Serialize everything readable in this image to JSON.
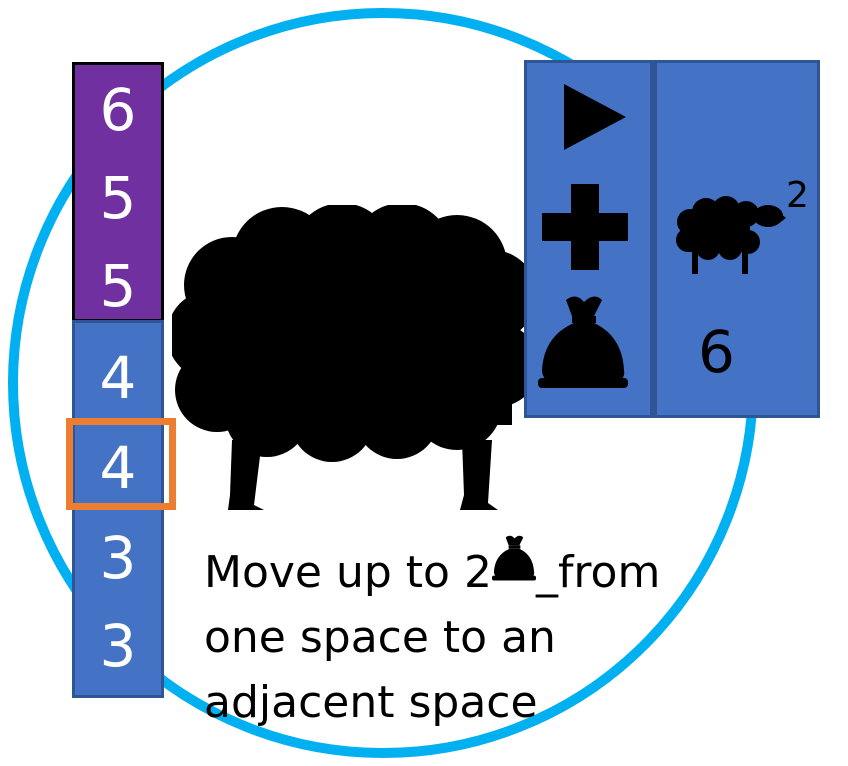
{
  "track": {
    "purple_values": [
      "6",
      "5",
      "5"
    ],
    "blue_values": [
      "4",
      "4",
      "3",
      "3"
    ],
    "highlighted_index": 4
  },
  "panel": {
    "icons": [
      "play-icon",
      "plus-icon",
      "money-bag-icon",
      "sheep-icon"
    ],
    "superscript": "2",
    "cost": "6"
  },
  "description": {
    "line1_before": "Move up to 2",
    "line1_underscore": "_",
    "line1_after": "from",
    "line2": "one space to an",
    "line3": "adjacent space"
  },
  "colors": {
    "ring": "#00b0f0",
    "purple": "#7030a0",
    "blue": "#4472c4",
    "marker": "#ed7d31"
  }
}
